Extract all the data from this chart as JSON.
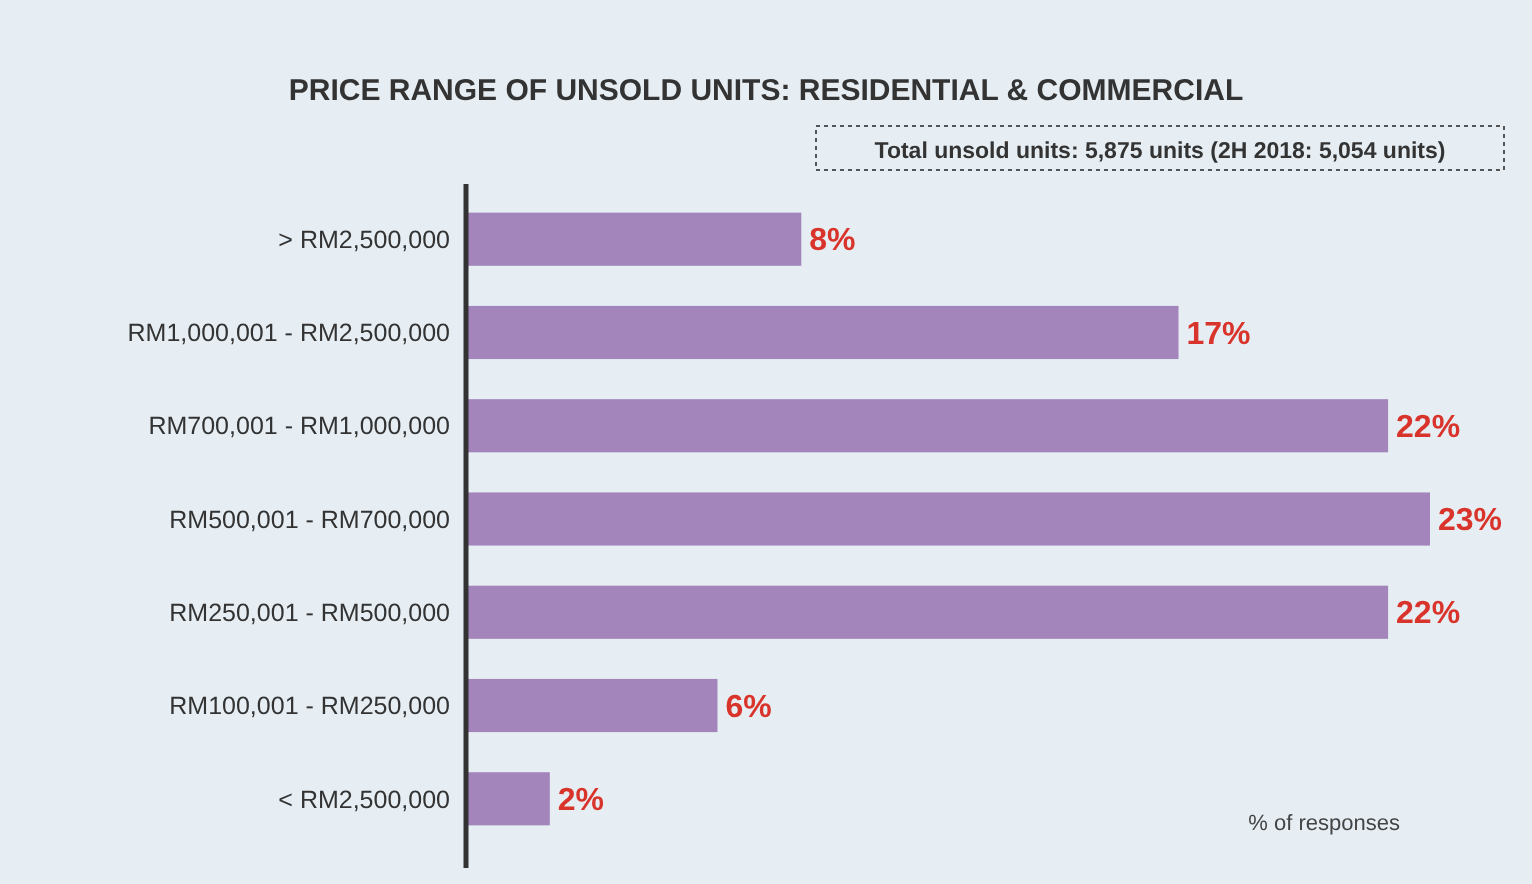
{
  "chart_data": {
    "type": "bar",
    "orientation": "horizontal",
    "title": "PRICE RANGE OF UNSOLD UNITS: RESIDENTIAL & COMMERCIAL",
    "xlabel": "% of responses",
    "annotations": [
      "Total unsold units: 5,875 units (2H 2018: 5,054 units)"
    ],
    "categories": [
      "> RM2,500,000",
      "RM1,000,001 - RM2,500,000",
      "RM700,001 - RM1,000,000",
      "RM500,001 - RM700,000",
      "RM250,001 - RM500,000",
      "RM100,001 - RM250,000",
      "< RM2,500,000"
    ],
    "values": [
      8,
      17,
      22,
      23,
      22,
      6,
      2
    ],
    "color": "#a385bb",
    "data_labels": true,
    "value_labels": [
      "8%",
      "17%",
      "22%",
      "23%",
      "22%",
      "6%",
      "2%"
    ]
  }
}
